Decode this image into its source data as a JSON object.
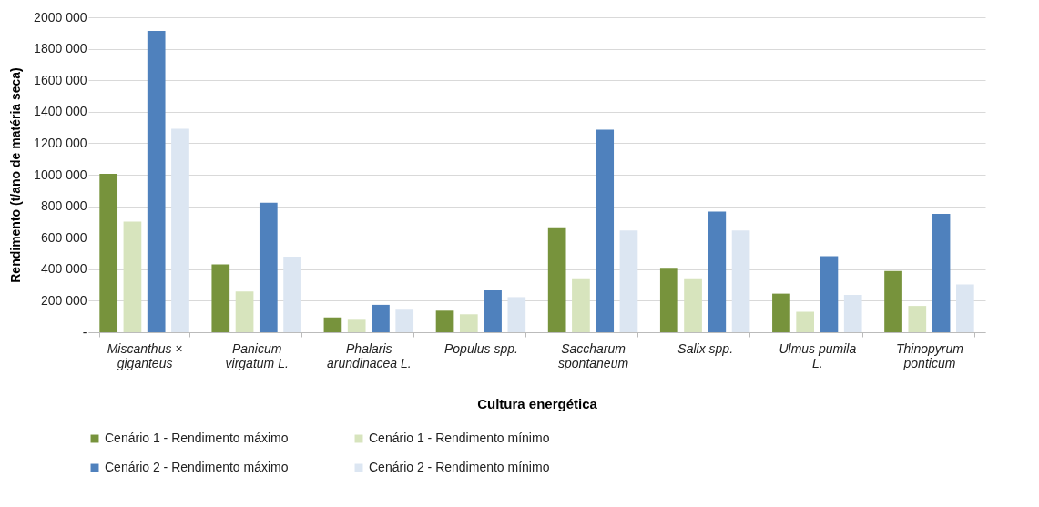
{
  "chart_data": {
    "type": "bar",
    "xlabel": "Cultura energética",
    "ylabel": "Rendimento (t/ano de matéria seca)",
    "categories": [
      "Miscanthus × giganteus",
      "Panicum virgatum L.",
      "Phalaris arundinacea L.",
      "Populus spp.",
      "Saccharum spontaneum",
      "Salix spp.",
      "Ulmus pumila L.",
      "Thinopyrum ponticum"
    ],
    "series": [
      {
        "name": "Cenário 1 - Rendimento máximo",
        "color": "#77933c",
        "values": [
          1006000,
          430000,
          94000,
          137000,
          666000,
          409000,
          245000,
          389000
        ]
      },
      {
        "name": "Cenário 1 - Rendimento mínimo",
        "color": "#d7e4bd",
        "values": [
          702000,
          258000,
          79000,
          114000,
          343000,
          343000,
          130000,
          167000
        ]
      },
      {
        "name": "Cenário 2 - Rendimento máximo",
        "color": "#4f81bd",
        "values": [
          1913000,
          822000,
          174000,
          266000,
          1286000,
          766000,
          483000,
          752000
        ]
      },
      {
        "name": "Cenário 2 - Rendimento mínimo",
        "color": "#dce6f2",
        "values": [
          1292000,
          480000,
          143000,
          223000,
          646000,
          646000,
          237000,
          303000
        ]
      }
    ],
    "ylim": [
      0,
      2000000
    ],
    "yticks": [
      {
        "value": 0,
        "label": "-"
      },
      {
        "value": 200000,
        "label": "200 000"
      },
      {
        "value": 400000,
        "label": "400 000"
      },
      {
        "value": 600000,
        "label": "600 000"
      },
      {
        "value": 800000,
        "label": "800 000"
      },
      {
        "value": 1000000,
        "label": "1000 000"
      },
      {
        "value": 1200000,
        "label": "1200 000"
      },
      {
        "value": 1400000,
        "label": "1400 000"
      },
      {
        "value": 1600000,
        "label": "1600 000"
      },
      {
        "value": 1800000,
        "label": "1800 000"
      },
      {
        "value": 2000000,
        "label": "2000 000"
      }
    ],
    "grid": "y",
    "legend": "bottom"
  }
}
